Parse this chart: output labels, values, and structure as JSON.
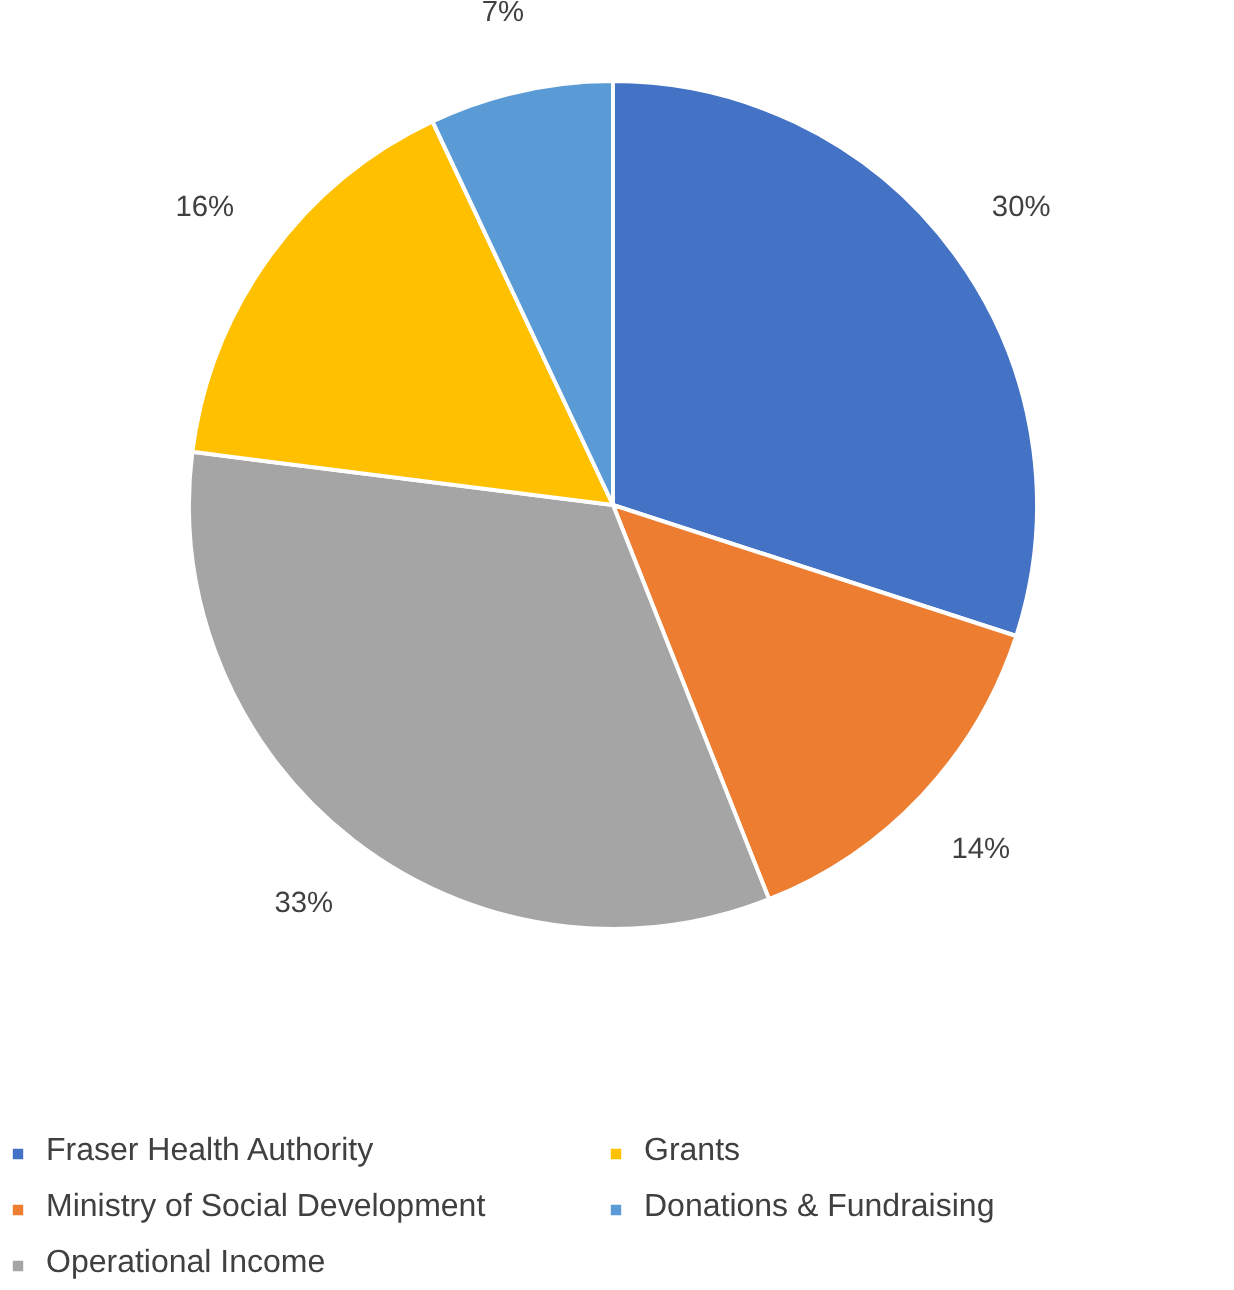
{
  "chart_data": {
    "type": "pie",
    "categories": [
      "Fraser Health Authority",
      "Ministry of Social Development",
      "Operational Income",
      "Grants",
      "Donations & Fundraising"
    ],
    "values": [
      30,
      14,
      33,
      16,
      7
    ],
    "colors": [
      "#4472c4",
      "#ed7d31",
      "#a5a5a5",
      "#ffc000",
      "#5b9bd5"
    ],
    "value_labels": [
      "30%",
      "14%",
      "33%",
      "16%",
      "7%"
    ],
    "legend": "bottom"
  }
}
